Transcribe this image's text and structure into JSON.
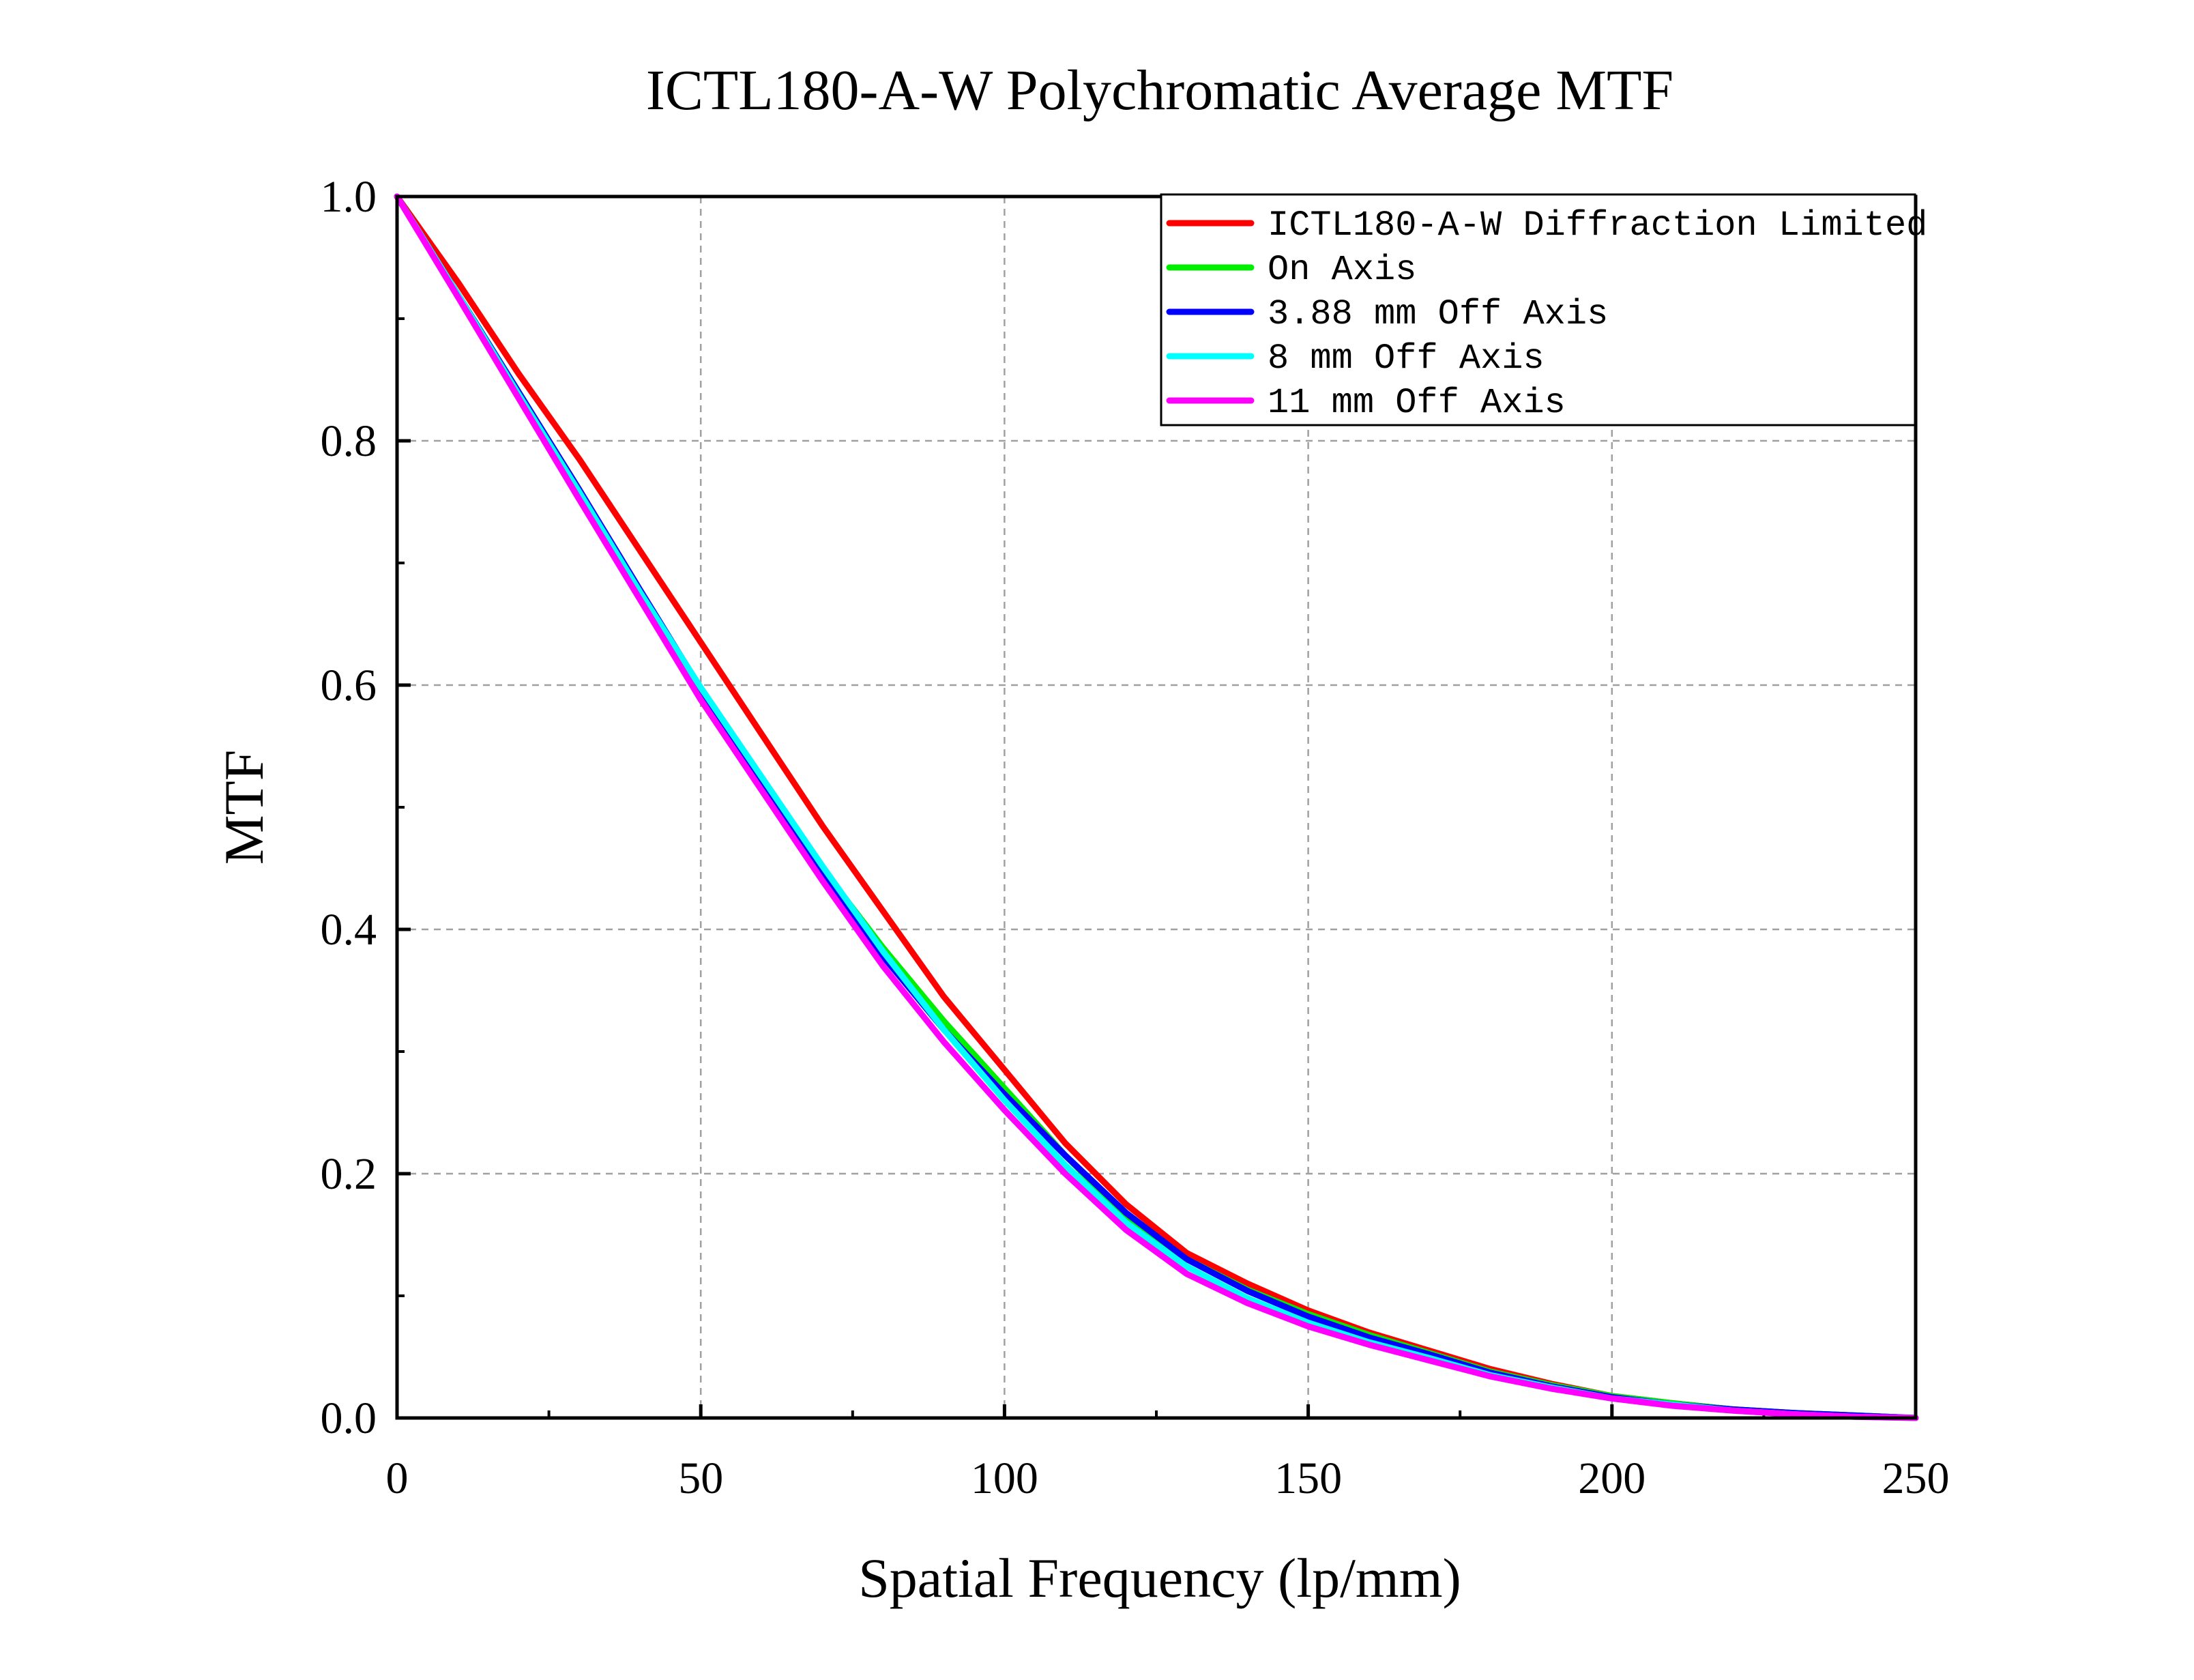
{
  "colors": {
    "diffraction": "#ff0000",
    "on_axis": "#00ee00",
    "off_388": "#0000ff",
    "off_8": "#00ffff",
    "off_11": "#ff00ff",
    "grid": "#a0a0a0",
    "axis": "#000000"
  },
  "chart_data": {
    "type": "line",
    "title": "ICTL180-A-W Polychromatic Average MTF",
    "xlabel": "Spatial Frequency (lp/mm)",
    "ylabel": "MTF",
    "xlim": [
      0,
      250
    ],
    "ylim": [
      0,
      1
    ],
    "xticks": [
      "0",
      "50",
      "100",
      "150",
      "200",
      "250"
    ],
    "yticks": [
      "0.0",
      "0.2",
      "0.4",
      "0.6",
      "0.8",
      "1.0"
    ],
    "grid": true,
    "legend_position": "top-right",
    "x": [
      0,
      10,
      20,
      30,
      40,
      50,
      60,
      70,
      80,
      90,
      100,
      110,
      120,
      130,
      140,
      150,
      160,
      170,
      180,
      190,
      200,
      210,
      220,
      230,
      240,
      250
    ],
    "series": [
      {
        "name": "ICTL180-A-W Diffraction Limited",
        "color_key": "diffraction",
        "values": [
          1.0,
          0.93,
          0.855,
          0.785,
          0.71,
          0.635,
          0.56,
          0.485,
          0.415,
          0.345,
          0.285,
          0.225,
          0.175,
          0.135,
          0.11,
          0.088,
          0.07,
          0.055,
          0.04,
          0.028,
          0.018,
          0.012,
          0.007,
          0.004,
          0.002,
          0.0
        ]
      },
      {
        "name": "On Axis",
        "color_key": "on_axis",
        "values": [
          1.0,
          0.92,
          0.84,
          0.76,
          0.675,
          0.59,
          0.52,
          0.45,
          0.385,
          0.325,
          0.27,
          0.215,
          0.165,
          0.13,
          0.105,
          0.085,
          0.068,
          0.053,
          0.038,
          0.027,
          0.018,
          0.012,
          0.007,
          0.004,
          0.002,
          0.0
        ]
      },
      {
        "name": "3.88 mm Off Axis",
        "color_key": "off_388",
        "values": [
          1.0,
          0.92,
          0.84,
          0.76,
          0.678,
          0.597,
          0.522,
          0.446,
          0.378,
          0.318,
          0.265,
          0.215,
          0.168,
          0.13,
          0.104,
          0.083,
          0.066,
          0.052,
          0.037,
          0.026,
          0.017,
          0.011,
          0.007,
          0.004,
          0.002,
          0.0
        ]
      },
      {
        "name": "8 mm Off Axis",
        "color_key": "off_8",
        "values": [
          1.0,
          0.92,
          0.838,
          0.758,
          0.676,
          0.598,
          0.525,
          0.452,
          0.382,
          0.318,
          0.26,
          0.207,
          0.16,
          0.124,
          0.098,
          0.078,
          0.062,
          0.049,
          0.035,
          0.025,
          0.016,
          0.011,
          0.006,
          0.003,
          0.001,
          0.0
        ]
      },
      {
        "name": "11 mm Off Axis",
        "color_key": "off_11",
        "values": [
          1.0,
          0.918,
          0.835,
          0.752,
          0.67,
          0.588,
          0.514,
          0.44,
          0.37,
          0.308,
          0.252,
          0.2,
          0.154,
          0.118,
          0.094,
          0.075,
          0.06,
          0.047,
          0.034,
          0.024,
          0.016,
          0.01,
          0.006,
          0.003,
          0.001,
          0.0
        ]
      }
    ]
  }
}
